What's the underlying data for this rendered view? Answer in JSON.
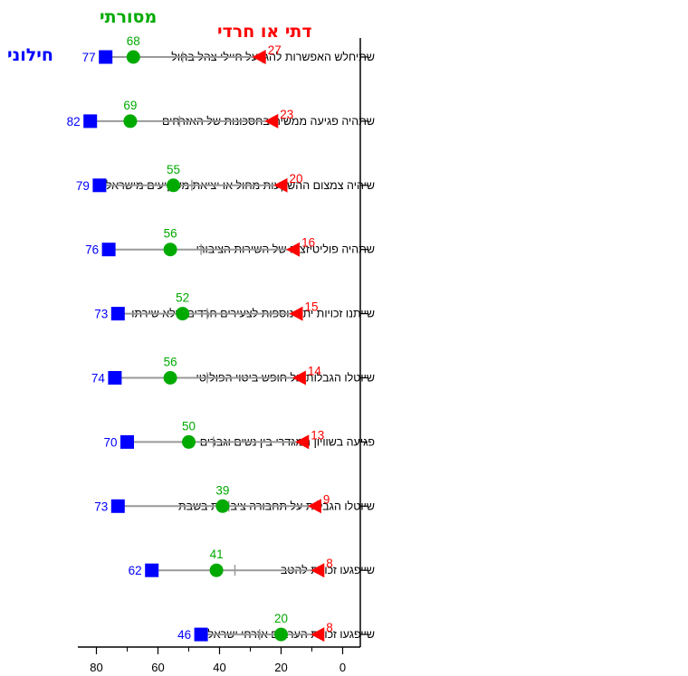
{
  "chart_data": {
    "type": "dot",
    "xlim": [
      0,
      85
    ],
    "x_reversed": true,
    "x_ticks": [
      80,
      60,
      40,
      20,
      0
    ],
    "categories": [
      "שתיחלש האפשרות להגן על חיילי צהל בחול",
      "שתהיה פגיעה ממשית בחסכונות של האזרחים",
      "שיהיה צמצום ההשקעות מחול או יציאת משקיעים מישראל",
      "שתהיה פוליטיזציה של השירות הציבורי",
      "שייתנו זכויות יתר נוספות לצעירים חרדים שלא שירתו",
      "שיוטלו הגבלות על חופש ביטוי הפוליטי",
      "פגיעה בשוויון המגדרי בין נשים וגברים",
      "שיוטלו הגבלות על תחבורה ציבורית בשבת",
      "שייפגעו זכויות להטב",
      "שייפגעו זכויות הערבים אזרחי ישראל"
    ],
    "series": [
      {
        "name": "חילוני",
        "color": "#0000ff",
        "marker": "square",
        "values": [
          77,
          82,
          79,
          76,
          73,
          74,
          70,
          73,
          62,
          46
        ]
      },
      {
        "name": "מסורתי",
        "color": "#00aa00",
        "marker": "circle",
        "values": [
          68,
          69,
          55,
          56,
          52,
          56,
          50,
          39,
          41,
          20
        ]
      },
      {
        "name": "דתי או חרדי",
        "color": "#ff0000",
        "marker": "triangle",
        "values": [
          27,
          23,
          20,
          16,
          15,
          14,
          13,
          9,
          8,
          8
        ]
      }
    ],
    "average_tick_color": "#999999",
    "average_values": [
      52,
      53,
      49,
      46,
      44,
      44,
      42,
      37,
      35,
      27
    ],
    "line_color": "#999999"
  }
}
